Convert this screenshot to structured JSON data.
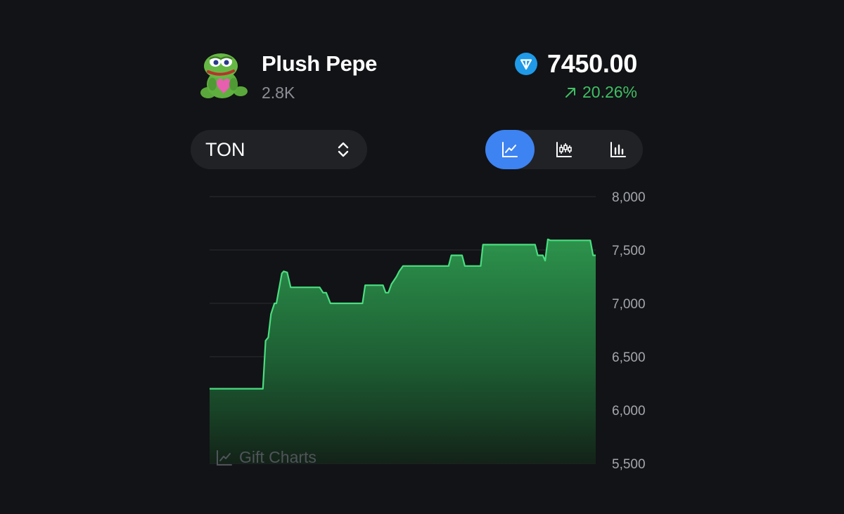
{
  "header": {
    "title": "Plush Pepe",
    "subtitle": "2.8K",
    "price": "7450.00",
    "change": "20.26%"
  },
  "icons": {
    "avatar": "plush-pepe-frog-icon",
    "currency": "ton-diamond-icon",
    "change": "arrow-up-right-icon"
  },
  "controls": {
    "currency_select": {
      "value": "TON"
    },
    "view_modes": [
      {
        "id": "line",
        "icon": "line-chart-icon",
        "active": true
      },
      {
        "id": "candles",
        "icon": "candlestick-chart-icon",
        "active": false
      },
      {
        "id": "bars",
        "icon": "bar-chart-icon",
        "active": false
      }
    ]
  },
  "watermark": {
    "text": "Gift Charts"
  },
  "colors": {
    "background": "#121316",
    "line": "#4ade80",
    "fill": "#2e9a4f",
    "accent": "#3d83f2",
    "positive": "#3fbf64",
    "muted": "#8b8e96"
  },
  "chart_data": {
    "type": "area",
    "yticks": [
      8000,
      7500,
      7000,
      6500,
      6000,
      5500
    ],
    "ytick_labels": [
      "8,000",
      "7,500",
      "7,000",
      "6,500",
      "6,000",
      "5,500"
    ],
    "ylim": [
      5500,
      8000
    ],
    "xlim": [
      0,
      100
    ],
    "grid": true,
    "x": [
      0,
      13.8,
      14.5,
      15.2,
      15.9,
      16.8,
      17.3,
      18.7,
      19.2,
      20.1,
      21.0,
      28.5,
      29.4,
      30.2,
      31.3,
      39.6,
      40.3,
      44.9,
      45.6,
      46.3,
      47.1,
      48.4,
      49.1,
      50.1,
      51.0,
      61.9,
      62.6,
      65.4,
      66.1,
      70.2,
      70.8,
      84.3,
      85.0,
      86.3,
      86.9,
      87.6,
      88.2,
      98.6,
      99.3,
      100
    ],
    "values": [
      6200,
      6200,
      6650,
      6680,
      6900,
      7000,
      7000,
      7280,
      7300,
      7290,
      7150,
      7150,
      7100,
      7100,
      7000,
      7000,
      7170,
      7170,
      7100,
      7100,
      7180,
      7250,
      7300,
      7350,
      7350,
      7350,
      7450,
      7450,
      7350,
      7350,
      7550,
      7550,
      7450,
      7450,
      7400,
      7600,
      7590,
      7590,
      7450,
      7450
    ]
  }
}
